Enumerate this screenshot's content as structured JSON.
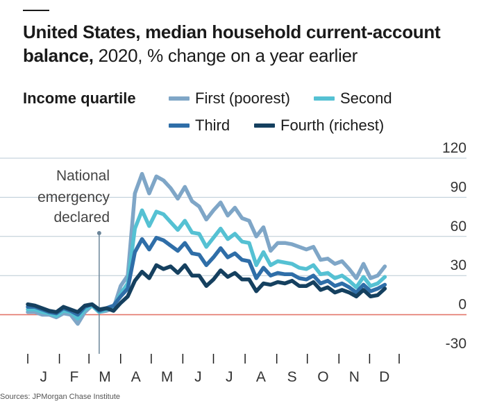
{
  "header": {
    "title": "United States, median household current-account",
    "title_line2": "balance,",
    "subtitle": "2020, % change on a year earlier"
  },
  "legend": {
    "title": "Income quartile",
    "items": [
      {
        "label": "First (poorest)",
        "color": "#7fa6c7"
      },
      {
        "label": "Second",
        "color": "#55c1d3"
      },
      {
        "label": "Third",
        "color": "#2f6ea8"
      },
      {
        "label": "Fourth (richest)",
        "color": "#15405f"
      }
    ]
  },
  "annotation": {
    "line1": "National",
    "line2": "emergency",
    "line3": "declared"
  },
  "source": "Sources: JPMorgan Chase Institute",
  "chart_data": {
    "type": "line",
    "x_unit": "week of 2020",
    "x_tick_labels": [
      "J",
      "F",
      "M",
      "A",
      "M",
      "J",
      "J",
      "A",
      "S",
      "O",
      "N",
      "D"
    ],
    "y_ticks": [
      -30,
      0,
      30,
      60,
      90,
      120
    ],
    "ylim": [
      -30,
      120
    ],
    "xlim": [
      1,
      53
    ],
    "y_axis_side": "right",
    "zero_line_color": "#e3766a",
    "grid": true,
    "legend_position": "top",
    "event_marker": {
      "x": 11,
      "label": "National emergency declared"
    },
    "x": [
      1,
      2,
      3,
      4,
      5,
      6,
      7,
      8,
      9,
      10,
      11,
      12,
      13,
      14,
      15,
      16,
      17,
      18,
      19,
      20,
      21,
      22,
      23,
      24,
      25,
      26,
      27,
      28,
      29,
      30,
      31,
      32,
      33,
      34,
      35,
      36,
      37,
      38,
      39,
      40,
      41,
      42,
      43,
      44,
      45,
      46,
      47,
      48,
      49,
      50,
      51
    ],
    "series": [
      {
        "name": "First (poorest)",
        "color": "#7fa6c7",
        "values": [
          2,
          2,
          0,
          0,
          -2,
          1,
          0,
          -7,
          2,
          7,
          2,
          3,
          5,
          22,
          30,
          93,
          108,
          93,
          106,
          103,
          97,
          89,
          98,
          87,
          83,
          73,
          80,
          86,
          76,
          82,
          74,
          72,
          60,
          67,
          49,
          55,
          55,
          54,
          52,
          50,
          52,
          42,
          43,
          39,
          41,
          35,
          28,
          39,
          28,
          30,
          37
        ]
      },
      {
        "name": "Second",
        "color": "#55c1d3",
        "values": [
          4,
          4,
          2,
          1,
          -1,
          3,
          2,
          -3,
          4,
          7,
          2,
          4,
          6,
          16,
          24,
          66,
          80,
          68,
          79,
          77,
          71,
          65,
          72,
          63,
          62,
          52,
          59,
          66,
          58,
          62,
          56,
          55,
          38,
          48,
          38,
          41,
          40,
          39,
          36,
          35,
          38,
          31,
          32,
          28,
          30,
          26,
          21,
          29,
          22,
          24,
          29
        ]
      },
      {
        "name": "Third",
        "color": "#2f6ea8",
        "values": [
          6,
          6,
          4,
          2,
          1,
          5,
          3,
          0,
          6,
          8,
          3,
          5,
          7,
          14,
          20,
          48,
          58,
          50,
          59,
          57,
          53,
          49,
          55,
          47,
          46,
          38,
          44,
          51,
          44,
          47,
          42,
          41,
          28,
          36,
          30,
          32,
          31,
          31,
          28,
          27,
          30,
          24,
          26,
          22,
          24,
          21,
          17,
          23,
          18,
          20,
          23
        ]
      },
      {
        "name": "Fourth (richest)",
        "color": "#15405f",
        "values": [
          8,
          7,
          5,
          3,
          2,
          6,
          4,
          2,
          7,
          8,
          4,
          5,
          3,
          9,
          14,
          26,
          33,
          28,
          38,
          35,
          37,
          32,
          38,
          30,
          30,
          22,
          27,
          34,
          29,
          32,
          27,
          27,
          18,
          24,
          23,
          25,
          24,
          26,
          22,
          22,
          25,
          19,
          21,
          17,
          19,
          17,
          14,
          19,
          14,
          15,
          20
        ]
      }
    ]
  }
}
